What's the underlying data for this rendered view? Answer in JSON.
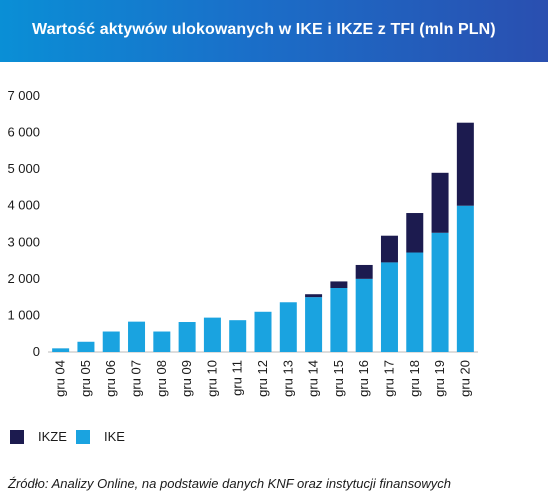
{
  "colors": {
    "ikze": "#1c1b4f",
    "ike": "#1aa3e0",
    "header_start": "#0a8fd6",
    "header_end": "#2a4fb0"
  },
  "chart_data": {
    "type": "bar",
    "stacked": true,
    "title": "Wartość aktywów ulokowanych w IKE i IKZE z TFI (mln PLN)",
    "categories": [
      "gru 04",
      "gru 05",
      "gru 06",
      "gru 07",
      "gru 08",
      "gru 09",
      "gru 10",
      "gru 11",
      "gru 12",
      "gru 13",
      "gru 14",
      "gru 15",
      "gru 16",
      "gru 17",
      "gru 18",
      "gru 19",
      "gru 20"
    ],
    "series": [
      {
        "name": "IKE",
        "values": [
          100,
          280,
          560,
          830,
          560,
          820,
          940,
          870,
          1100,
          1360,
          1500,
          1750,
          2000,
          2450,
          2720,
          3260,
          4000
        ]
      },
      {
        "name": "IKZE",
        "values": [
          0,
          0,
          0,
          0,
          0,
          0,
          0,
          0,
          0,
          0,
          80,
          180,
          380,
          730,
          1080,
          1640,
          2270
        ]
      }
    ],
    "ylim": [
      0,
      7000
    ],
    "yticks": [
      0,
      1000,
      2000,
      3000,
      4000,
      5000,
      6000,
      7000
    ],
    "ytick_labels": [
      "0",
      "1 000",
      "2 000",
      "3 000",
      "4 000",
      "5 000",
      "6 000",
      "7 000"
    ],
    "grid": false,
    "legend_position": "bottom-left",
    "legend": [
      "IKZE",
      "IKE"
    ]
  },
  "source_note": "Źródło: Analizy Online, na podstawie danych KNF oraz instytucji finansowych"
}
